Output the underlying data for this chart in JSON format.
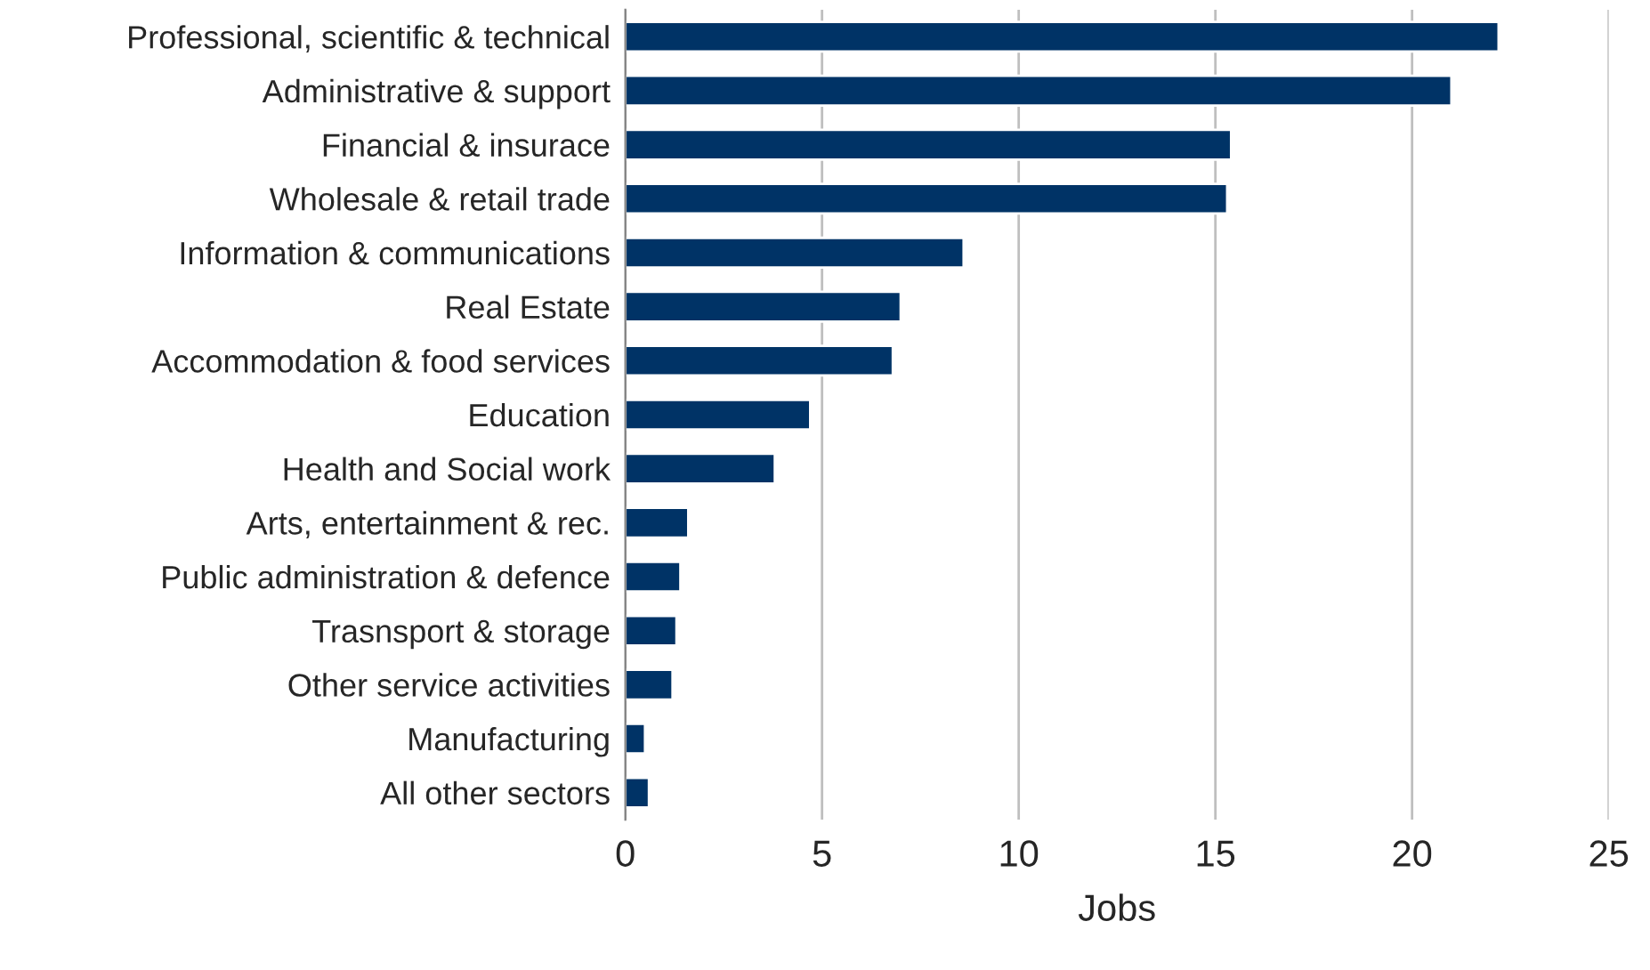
{
  "chart_data": {
    "type": "bar",
    "orientation": "horizontal",
    "xlabel": "Jobs",
    "categories": [
      "Professional, scientific & technical",
      "Administrative & support",
      "Financial & insurace",
      "Wholesale & retail trade",
      "Information & communications",
      "Real Estate",
      "Accommodation & food services",
      "Education",
      "Health and Social work",
      "Arts, entertainment & rec.",
      "Public administration & defence",
      "Trasnsport & storage",
      "Other service activities",
      "Manufacturing",
      "All other sectors"
    ],
    "values": [
      22.2,
      21.0,
      15.4,
      15.3,
      8.6,
      7.0,
      6.8,
      4.7,
      3.8,
      1.6,
      1.4,
      1.3,
      1.2,
      0.5,
      0.6
    ],
    "color": "#003366",
    "xlim": [
      0,
      25
    ],
    "xticks": [
      0,
      5,
      10,
      15,
      20,
      25
    ],
    "grid": "x",
    "legend": false
  }
}
